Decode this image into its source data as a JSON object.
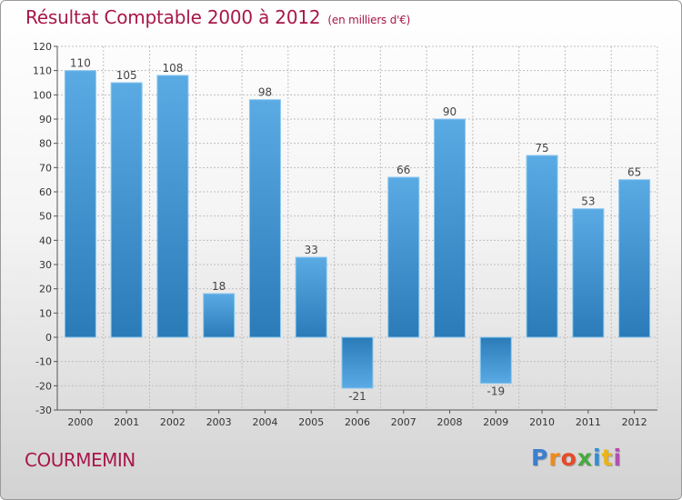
{
  "header": {
    "title": "Résultat Comptable 2000 à 2012",
    "subtitle": "(en milliers d'€)"
  },
  "footer": {
    "place": "COURMEMIN",
    "logo_letters": [
      "P",
      "r",
      "o",
      "x",
      "i",
      "t",
      "i"
    ],
    "logo_colors": [
      "#3b7fd0",
      "#f08a1c",
      "#e64b27",
      "#49a942",
      "#2f8fd8",
      "#e9b41b",
      "#b44fb0"
    ]
  },
  "colors": {
    "accent": "#a8174a",
    "bar_light": "#5aaae4",
    "bar_dark": "#2a7bb8",
    "bar_edge": "#8ac7ef",
    "grid": "#bfbfbf",
    "axis": "#555555"
  },
  "chart_data": {
    "type": "bar",
    "title": "Résultat Comptable 2000 à 2012",
    "subtitle": "(en milliers d'€)",
    "xlabel": "",
    "ylabel": "",
    "categories": [
      "2000",
      "2001",
      "2002",
      "2003",
      "2004",
      "2005",
      "2006",
      "2007",
      "2008",
      "2009",
      "2010",
      "2011",
      "2012"
    ],
    "values": [
      110,
      105,
      108,
      18,
      98,
      33,
      -21,
      66,
      90,
      -19,
      75,
      53,
      65
    ],
    "value_labels": [
      "110",
      "105",
      "108",
      "18",
      "98",
      "33",
      "-21",
      "66",
      "90",
      "-19",
      "75",
      "53",
      "65"
    ],
    "ylim": [
      -30,
      120
    ],
    "yticks": [
      -30,
      -20,
      -10,
      0,
      10,
      20,
      30,
      40,
      50,
      60,
      70,
      80,
      90,
      100,
      110,
      120
    ],
    "ytick_labels": [
      "-30",
      "-20",
      "-10",
      "0",
      "10",
      "20",
      "30",
      "40",
      "50",
      "60",
      "70",
      "80",
      "90",
      "100",
      "110",
      "120"
    ],
    "grid": true,
    "legend": "none"
  }
}
